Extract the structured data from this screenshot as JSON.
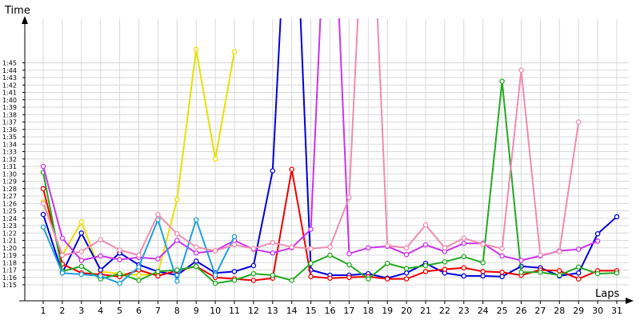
{
  "chart_data": {
    "type": "line",
    "xlabel": "Laps",
    "ylabel": "Time",
    "x": [
      1,
      2,
      3,
      4,
      5,
      6,
      7,
      8,
      9,
      10,
      11,
      12,
      13,
      14,
      15,
      16,
      17,
      18,
      19,
      20,
      21,
      22,
      23,
      24,
      25,
      26,
      27,
      28,
      29,
      30,
      31
    ],
    "xlim": [
      1,
      31
    ],
    "ylim": [
      74,
      108
    ],
    "y_tick_labels": [
      "1:15",
      "1:16",
      "1:17",
      "1:18",
      "1:19",
      "1:20",
      "1:21",
      "1:22",
      "1:23",
      "1:24",
      "1:25",
      "1:26",
      "1:27",
      "1:28",
      "1:29",
      "1:30",
      "1:31",
      "1:32",
      "1:33",
      "1:34",
      "1:35",
      "1:36",
      "1:37",
      "1:38",
      "1:39",
      "1:40",
      "1:41",
      "1:42",
      "1:43",
      "1:44",
      "1:45"
    ],
    "y_tick_values": [
      75,
      76,
      77,
      78,
      79,
      80,
      81,
      82,
      83,
      84,
      85,
      86,
      87,
      88,
      89,
      90,
      91,
      92,
      93,
      94,
      95,
      96,
      97,
      98,
      99,
      100,
      101,
      102,
      103,
      104,
      105
    ],
    "grid": true,
    "legend": false,
    "series": [
      {
        "color": "#e8e000",
        "values": [
          86.2,
          79.0,
          83.5,
          76.8,
          76.5,
          76.3,
          76.5,
          86.5,
          106.8,
          92.0,
          106.5,
          null,
          null,
          null,
          null,
          null,
          null,
          null,
          null,
          null,
          null,
          null,
          null,
          null,
          null,
          null,
          null,
          null,
          null,
          null,
          null
        ]
      },
      {
        "color": "#0000dd",
        "values": [
          84.5,
          76.6,
          82.0,
          77.0,
          79.3,
          77.7,
          76.8,
          76.3,
          78.2,
          76.6,
          76.8,
          77.6,
          90.4,
          140.0,
          77.0,
          76.3,
          76.3,
          76.5,
          75.9,
          76.6,
          77.9,
          76.6,
          76.2,
          76.2,
          76.1,
          77.5,
          77.3,
          76.2,
          76.6,
          81.9,
          84.2
        ]
      },
      {
        "color": "#ee0000",
        "values": [
          88.0,
          77.8,
          76.6,
          76.4,
          76.1,
          77.0,
          76.2,
          76.9,
          77.5,
          76.0,
          75.8,
          75.6,
          75.9,
          90.6,
          76.1,
          75.9,
          76.0,
          76.1,
          75.8,
          75.8,
          76.8,
          77.1,
          77.3,
          76.8,
          76.7,
          76.3,
          77.0,
          76.9,
          75.8,
          76.9,
          76.9
        ]
      },
      {
        "color": "#22aa22",
        "values": [
          90.2,
          76.8,
          77.5,
          75.8,
          76.5,
          75.6,
          76.8,
          77.0,
          77.5,
          75.2,
          75.6,
          76.5,
          76.3,
          75.6,
          77.9,
          79.0,
          77.7,
          75.8,
          77.9,
          77.2,
          77.6,
          78.1,
          78.8,
          78.0,
          102.5,
          76.7,
          76.7,
          76.3,
          77.4,
          76.5,
          76.6
        ]
      },
      {
        "color": "#cc33ee",
        "values": [
          91.0,
          81.3,
          78.3,
          78.9,
          78.4,
          78.7,
          78.5,
          81.0,
          79.3,
          79.6,
          81.0,
          79.8,
          79.3,
          80.0,
          82.5,
          140.0,
          79.2,
          80.0,
          80.2,
          79.1,
          80.4,
          79.5,
          80.6,
          80.6,
          78.9,
          78.3,
          78.9,
          79.6,
          79.8,
          80.9,
          null
        ]
      },
      {
        "color": "#1fa0dd",
        "values": [
          82.8,
          76.6,
          76.4,
          76.2,
          75.2,
          77.4,
          83.8,
          75.5,
          83.8,
          76.3,
          81.5,
          null,
          null,
          null,
          null,
          null,
          null,
          null,
          null,
          null,
          null,
          null,
          null,
          null,
          null,
          null,
          null,
          null,
          null,
          null,
          null
        ]
      },
      {
        "color": "#f08cb0",
        "values": [
          86.0,
          79.0,
          79.5,
          81.1,
          79.7,
          79.0,
          84.5,
          81.9,
          80.1,
          79.6,
          80.4,
          79.9,
          80.7,
          80.1,
          79.9,
          80.1,
          86.8,
          140.0,
          80.3,
          80.0,
          83.1,
          80.0,
          81.3,
          80.5,
          79.9,
          104.0,
          79.0,
          79.5,
          97.0,
          null,
          null
        ]
      }
    ]
  }
}
